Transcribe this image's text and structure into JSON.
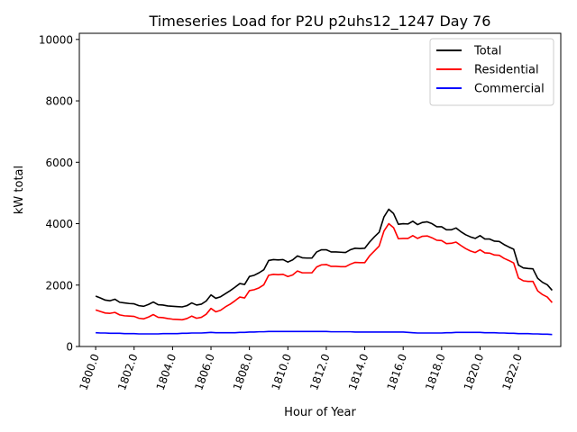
{
  "chart_data": {
    "type": "line",
    "title": "Timeseries Load for P2U p2uhs12_1247  Day 76",
    "xlabel": "Hour of Year",
    "ylabel": "kW total",
    "xlim": [
      1799.15,
      1824.2
    ],
    "ylim": [
      0,
      10200
    ],
    "x_ticks": [
      1800,
      1802,
      1804,
      1806,
      1808,
      1810,
      1812,
      1814,
      1816,
      1818,
      1820,
      1822
    ],
    "x_tick_labels": [
      "1800.0",
      "1802.0",
      "1804.0",
      "1806.0",
      "1808.0",
      "1810.0",
      "1812.0",
      "1814.0",
      "1816.0",
      "1818.0",
      "1820.0",
      "1822.0"
    ],
    "y_ticks": [
      0,
      2000,
      4000,
      6000,
      8000,
      10000
    ],
    "y_tick_labels": [
      "0",
      "2000",
      "4000",
      "6000",
      "8000",
      "10000"
    ],
    "legend_position": "top-right",
    "x": [
      1800.0,
      1800.25,
      1800.5,
      1800.75,
      1801.0,
      1801.25,
      1801.5,
      1801.75,
      1802.0,
      1802.25,
      1802.5,
      1802.75,
      1803.0,
      1803.25,
      1803.5,
      1803.75,
      1804.0,
      1804.25,
      1804.5,
      1804.75,
      1805.0,
      1805.25,
      1805.5,
      1805.75,
      1806.0,
      1806.25,
      1806.5,
      1806.75,
      1807.0,
      1807.25,
      1807.5,
      1807.75,
      1808.0,
      1808.25,
      1808.5,
      1808.75,
      1809.0,
      1809.25,
      1809.5,
      1809.75,
      1810.0,
      1810.25,
      1810.5,
      1810.75,
      1811.0,
      1811.25,
      1811.5,
      1811.75,
      1812.0,
      1812.25,
      1812.5,
      1812.75,
      1813.0,
      1813.25,
      1813.5,
      1813.75,
      1814.0,
      1814.25,
      1814.5,
      1814.75,
      1815.0,
      1815.25,
      1815.5,
      1815.75,
      1816.0,
      1816.25,
      1816.5,
      1816.75,
      1817.0,
      1817.25,
      1817.5,
      1817.75,
      1818.0,
      1818.25,
      1818.5,
      1818.75,
      1819.0,
      1819.25,
      1819.5,
      1819.75,
      1820.0,
      1820.25,
      1820.5,
      1820.75,
      1821.0,
      1821.25,
      1821.5,
      1821.75,
      1822.0,
      1822.25,
      1822.5,
      1822.75,
      1823.0,
      1823.25,
      1823.5,
      1823.75
    ],
    "series": [
      {
        "name": "Total",
        "color": "#000000",
        "values": [
          1640,
          1580,
          1510,
          1490,
          1540,
          1440,
          1420,
          1400,
          1390,
          1330,
          1310,
          1370,
          1450,
          1360,
          1350,
          1320,
          1310,
          1300,
          1290,
          1330,
          1420,
          1350,
          1380,
          1480,
          1680,
          1570,
          1620,
          1720,
          1820,
          1930,
          2050,
          2020,
          2280,
          2320,
          2400,
          2500,
          2800,
          2830,
          2820,
          2830,
          2750,
          2820,
          2950,
          2890,
          2880,
          2880,
          3080,
          3150,
          3150,
          3080,
          3080,
          3070,
          3060,
          3150,
          3200,
          3190,
          3200,
          3400,
          3570,
          3720,
          4220,
          4470,
          4330,
          3980,
          4000,
          3990,
          4080,
          3970,
          4040,
          4060,
          4000,
          3900,
          3900,
          3800,
          3800,
          3860,
          3740,
          3640,
          3570,
          3520,
          3610,
          3500,
          3500,
          3430,
          3420,
          3320,
          3240,
          3170,
          2650,
          2560,
          2540,
          2530,
          2220,
          2090,
          2010,
          1830
        ]
      },
      {
        "name": "Residential",
        "color": "#ff0000",
        "values": [
          1190,
          1140,
          1090,
          1080,
          1110,
          1030,
          1000,
          990,
          980,
          920,
          900,
          960,
          1040,
          950,
          940,
          910,
          890,
          880,
          870,
          910,
          990,
          920,
          950,
          1050,
          1240,
          1130,
          1180,
          1290,
          1380,
          1490,
          1610,
          1580,
          1820,
          1850,
          1910,
          2010,
          2320,
          2350,
          2340,
          2350,
          2280,
          2330,
          2460,
          2400,
          2400,
          2400,
          2590,
          2660,
          2670,
          2610,
          2610,
          2600,
          2600,
          2680,
          2740,
          2730,
          2730,
          2950,
          3110,
          3270,
          3760,
          4000,
          3870,
          3510,
          3520,
          3520,
          3610,
          3520,
          3590,
          3600,
          3540,
          3460,
          3450,
          3350,
          3360,
          3400,
          3290,
          3190,
          3110,
          3060,
          3150,
          3050,
          3040,
          2980,
          2970,
          2870,
          2800,
          2720,
          2230,
          2140,
          2120,
          2120,
          1810,
          1690,
          1610,
          1430
        ]
      },
      {
        "name": "Commercial",
        "color": "#0000ff",
        "values": [
          450,
          440,
          440,
          430,
          430,
          430,
          420,
          420,
          420,
          410,
          410,
          410,
          410,
          410,
          420,
          420,
          420,
          420,
          430,
          430,
          440,
          440,
          440,
          450,
          460,
          450,
          450,
          450,
          450,
          450,
          460,
          460,
          470,
          470,
          480,
          480,
          490,
          490,
          490,
          490,
          490,
          490,
          490,
          490,
          490,
          490,
          490,
          490,
          490,
          480,
          480,
          480,
          480,
          480,
          470,
          470,
          470,
          470,
          470,
          470,
          470,
          470,
          470,
          470,
          470,
          460,
          450,
          440,
          440,
          440,
          440,
          440,
          440,
          450,
          450,
          460,
          460,
          460,
          460,
          460,
          460,
          450,
          450,
          450,
          440,
          440,
          430,
          430,
          420,
          420,
          420,
          410,
          410,
          400,
          400,
          390
        ]
      }
    ]
  }
}
